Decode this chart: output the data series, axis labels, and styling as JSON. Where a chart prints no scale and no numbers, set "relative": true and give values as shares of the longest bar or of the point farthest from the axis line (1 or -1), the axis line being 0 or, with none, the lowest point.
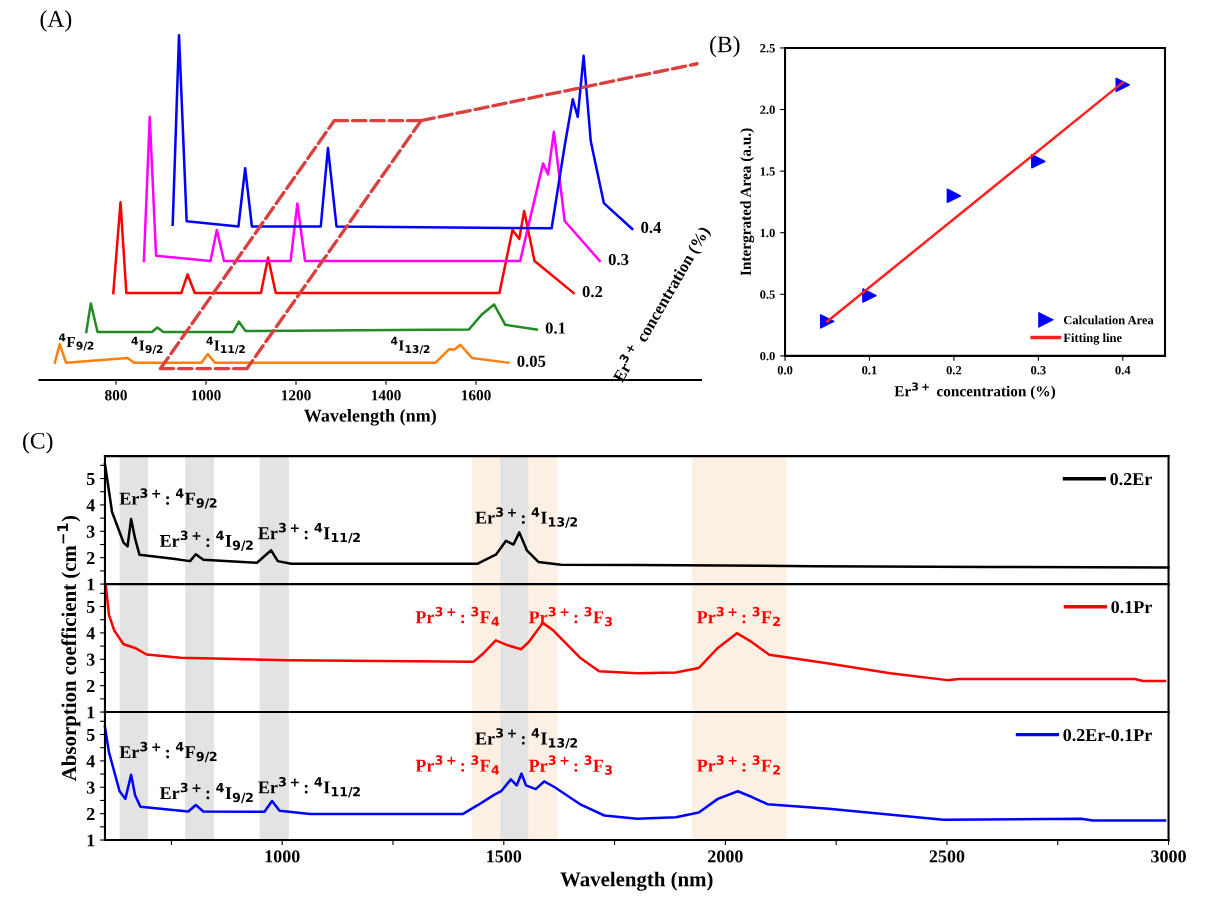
{
  "chart_data": [
    {
      "type": "line",
      "title": "(A)",
      "xlabel": "Wavelength (nm)",
      "y2label": "Er$^{3+}$ concentration (%)",
      "relative": true,
      "xlim": [
        630,
        2100
      ],
      "xticks": [
        800,
        1000,
        1200,
        1400,
        1600
      ],
      "tick_labels": "x",
      "series": [
        {
          "name": "0.05",
          "color": "#ff7f0e",
          "x": [
            664,
            675,
            689,
            826,
            840,
            990,
            1004,
            1020,
            1510,
            1540,
            1552,
            1565,
            1591,
            1672
          ],
          "values": [
            0.05,
            0.104,
            0.05,
            0.064,
            0.05,
            0.05,
            0.075,
            0.05,
            0.05,
            0.089,
            0.088,
            0.102,
            0.064,
            0.05
          ]
        },
        {
          "name": "0.1",
          "color": "#228b22",
          "x": [
            734,
            744,
            759,
            880,
            892,
            905,
            1060,
            1073,
            1088,
            1584,
            1613,
            1640,
            1665,
            1735
          ],
          "values": [
            0.139,
            0.222,
            0.139,
            0.139,
            0.152,
            0.139,
            0.139,
            0.169,
            0.142,
            0.146,
            0.19,
            0.219,
            0.16,
            0.146
          ]
        },
        {
          "name": "0.2",
          "color": "#ff0000",
          "x": [
            794,
            810,
            823,
            945,
            959,
            975,
            1122,
            1138,
            1155,
            1652,
            1681,
            1696,
            1707,
            1730,
            1817
          ],
          "values": [
            0.252,
            0.515,
            0.252,
            0.252,
            0.306,
            0.252,
            0.252,
            0.355,
            0.252,
            0.252,
            0.435,
            0.409,
            0.49,
            0.345,
            0.252
          ]
        },
        {
          "name": "0.3",
          "color": "#ff00ff",
          "x": [
            862,
            875,
            889,
            1010,
            1024,
            1040,
            1188,
            1203,
            1220,
            1698,
            1749,
            1760,
            1773,
            1797,
            1875
          ],
          "values": [
            0.345,
            0.763,
            0.36,
            0.345,
            0.435,
            0.345,
            0.345,
            0.512,
            0.345,
            0.345,
            0.628,
            0.596,
            0.72,
            0.461,
            0.345
          ]
        },
        {
          "name": "0.4",
          "color": "#0000ff",
          "x": [
            926,
            940,
            957,
            1072,
            1087,
            1102,
            1255,
            1271,
            1290,
            1768,
            1797,
            1815,
            1826,
            1839,
            1855,
            1884,
            1947
          ],
          "values": [
            0.45,
            1.0,
            0.46,
            0.445,
            0.614,
            0.445,
            0.445,
            0.673,
            0.445,
            0.44,
            0.679,
            0.814,
            0.763,
            0.94,
            0.692,
            0.513,
            0.438
          ]
        },
        {
          "type": "line",
          "line_style": "dashed",
          "color": "#d9413f",
          "x": [
            899,
            1285,
            1478,
            1091,
            899
          ],
          "values": [
            0.033,
            0.752,
            0.752,
            0.033,
            0.033
          ]
        },
        {
          "type": "line",
          "line_style": "dashed",
          "color": "#d9413f",
          "x": [
            1478,
            2091
          ],
          "values": [
            0.752,
            0.917
          ]
        }
      ],
      "annotations": [
        "$^{4}$F$_{9/2}$",
        "$^{4}$I$_{9/2}$",
        "$^{4}$I$_{11/2}$",
        "$^{4}$I$_{13/2}$"
      ]
    },
    {
      "type": "scatter",
      "title": "(B)",
      "xlabel": "Er$^{3+}$ concentration (%)",
      "ylabel": "Intergrated Area (a.u.)",
      "xlim": [
        0,
        0.45
      ],
      "ylim": [
        0,
        2.5
      ],
      "xticks": [
        {
          "value": 0,
          "label": "0.0"
        },
        0.1,
        0.2,
        0.3,
        0.4
      ],
      "yticks": [
        {
          "value": 0,
          "label": "0.0"
        },
        0.5,
        {
          "value": 1,
          "label": "1.0"
        },
        1.5,
        {
          "value": 2,
          "label": "2.0"
        },
        2.5
      ],
      "legend": "bottom right",
      "series": [
        {
          "name": "Calculation Area",
          "type": "scatter",
          "marker": "triangle",
          "color": "#0000ff",
          "x": [
            0.05,
            0.1,
            0.2,
            0.3,
            0.4
          ],
          "values": [
            0.28,
            0.49,
            1.3,
            1.58,
            2.2
          ]
        },
        {
          "name": "Fitting line",
          "type": "line",
          "color": "#ff2020",
          "x": [
            0.05,
            0.4
          ],
          "values": [
            0.28,
            2.22
          ]
        }
      ]
    },
    {
      "type": "line",
      "title": "(C)",
      "xlim": [
        600,
        3000
      ],
      "ylim": [
        1,
        5.85
      ],
      "yticks": [
        1,
        {
          "value": 1.5,
          "label": null
        },
        2,
        {
          "value": 2.5,
          "label": null
        },
        3,
        {
          "value": 3.5,
          "label": null
        },
        4,
        {
          "value": 4.5,
          "label": null
        },
        5,
        {
          "value": 5.5,
          "label": null
        }
      ],
      "tick_labels": "y",
      "legend": "top right",
      "bands": [
        {
          "axis": "x",
          "from": 633,
          "to": 697,
          "color": "#e3e3e3"
        },
        {
          "axis": "x",
          "from": 781,
          "to": 846,
          "color": "#e3e3e3"
        },
        {
          "axis": "x",
          "from": 949,
          "to": 1015,
          "color": "#e3e3e3"
        },
        {
          "axis": "x",
          "from": 1428,
          "to": 1492,
          "color": "#fcefe3"
        },
        {
          "axis": "x",
          "from": 1492,
          "to": 1556,
          "color": "#e3e3e3"
        },
        {
          "axis": "x",
          "from": 1556,
          "to": 1621,
          "color": "#fcefe3"
        },
        {
          "axis": "x",
          "from": 1924,
          "to": 2138,
          "color": "#fcefe3"
        }
      ],
      "series": [
        {
          "name": "0.2Er",
          "color": "#000000",
          "x": [
            600,
            616,
            642,
            651,
            659,
            668,
            678,
            754,
            792,
            805,
            822,
            943,
            975,
            990,
            1020,
            1440,
            1483,
            1505,
            1522,
            1535,
            1552,
            1578,
            1629,
            1800,
            2200,
            2600,
            3000
          ],
          "values": [
            5.55,
            3.73,
            2.57,
            2.43,
            3.47,
            2.72,
            2.11,
            1.96,
            1.87,
            2.13,
            1.92,
            1.81,
            2.28,
            1.87,
            1.77,
            1.77,
            2.13,
            2.64,
            2.5,
            2.96,
            2.28,
            1.84,
            1.73,
            1.72,
            1.68,
            1.65,
            1.63
          ]
        }
      ],
      "annotations": [
        "Er$^{3+}$: $^{4}$F$_{9/2}$",
        "Er$^{3+}$: $^{4}$I$_{9/2}$",
        "Er$^{3+}$: $^{4}$I$_{11/2}$",
        {
          "text": "Er$^{3+}$: $^{4}$I$_{13/2}$",
          "x": 1552,
          "y": 3.52
        }
      ]
    },
    {
      "type": "line",
      "ylabel": "Absorption coefficient (cm$^{−1}$)",
      "xlim": [
        600,
        3000
      ],
      "ylim": [
        1,
        5.85
      ],
      "yticks": [
        1,
        {
          "value": 1.5,
          "label": null
        },
        2,
        {
          "value": 2.5,
          "label": null
        },
        3,
        {
          "value": 3.5,
          "label": null
        },
        4,
        {
          "value": 4.5,
          "label": null
        },
        5,
        {
          "value": 5.5,
          "label": null
        }
      ],
      "tick_labels": "y",
      "legend": "top right",
      "bands": [
        {
          "axis": "x",
          "from": 633,
          "to": 697,
          "color": "#e3e3e3"
        },
        {
          "axis": "x",
          "from": 781,
          "to": 846,
          "color": "#e3e3e3"
        },
        {
          "axis": "x",
          "from": 949,
          "to": 1015,
          "color": "#e3e3e3"
        },
        {
          "axis": "x",
          "from": 1428,
          "to": 1492,
          "color": "#fcefe3",
          "label": "Pr$^{3+}$: $^{3}$F$_{4}$"
        },
        {
          "axis": "x",
          "from": 1492,
          "to": 1556,
          "color": "#e3e3e3"
        },
        {
          "axis": "x",
          "from": 1556,
          "to": 1621,
          "color": "#fcefe3",
          "label": "Pr$^{3+}$: $^{3}$F$_{3}$"
        },
        {
          "axis": "x",
          "from": 1924,
          "to": 2138,
          "color": "#fcefe3",
          "label": "Pr$^{3+}$: $^{3}$F$_{2}$"
        }
      ],
      "series": [
        {
          "name": "0.1Pr",
          "color": "#ff0000",
          "x": [
            602,
            609,
            621,
            642,
            668,
            694,
            771,
            1011,
            1432,
            1453,
            1482,
            1509,
            1539,
            1556,
            1588,
            1612,
            1672,
            1715,
            1801,
            1888,
            1940,
            1983,
            2026,
            2060,
            2099,
            2233,
            2372,
            2501,
            2527,
            2924,
            2942,
            2992
          ],
          "values": [
            5.8,
            4.68,
            4.09,
            3.57,
            3.43,
            3.18,
            3.06,
            2.96,
            2.91,
            3.21,
            3.72,
            3.53,
            3.38,
            3.65,
            4.38,
            4.09,
            3.06,
            2.55,
            2.47,
            2.5,
            2.67,
            3.43,
            3.99,
            3.65,
            3.17,
            2.84,
            2.47,
            2.21,
            2.25,
            2.25,
            2.18,
            2.18
          ]
        }
      ]
    },
    {
      "type": "line",
      "xlabel": "Wavelength (nm)",
      "xlim": [
        600,
        3000
      ],
      "ylim": [
        1,
        5.85
      ],
      "xticks": [
        {
          "value": 750,
          "label": null
        },
        1000,
        {
          "value": 1250,
          "label": null
        },
        1500,
        {
          "value": 1750,
          "label": null
        },
        2000,
        {
          "value": 2250,
          "label": null
        },
        2500,
        {
          "value": 2750,
          "label": null
        },
        3000
      ],
      "yticks": [
        1,
        {
          "value": 1.5,
          "label": null
        },
        2,
        {
          "value": 2.5,
          "label": null
        },
        3,
        {
          "value": 3.5,
          "label": null
        },
        4,
        {
          "value": 4.5,
          "label": null
        },
        5,
        {
          "value": 5.5,
          "label": null
        }
      ],
      "legend": "top right",
      "bands": [
        {
          "axis": "x",
          "from": 633,
          "to": 697,
          "color": "#e3e3e3"
        },
        {
          "axis": "x",
          "from": 781,
          "to": 846,
          "color": "#e3e3e3"
        },
        {
          "axis": "x",
          "from": 949,
          "to": 1015,
          "color": "#e3e3e3"
        },
        {
          "axis": "x",
          "from": 1428,
          "to": 1492,
          "color": "#fcefe3",
          "label": "Pr$^{3+}$: $^{3}$F$_{4}$"
        },
        {
          "axis": "x",
          "from": 1492,
          "to": 1556,
          "color": "#e3e3e3"
        },
        {
          "axis": "x",
          "from": 1556,
          "to": 1621,
          "color": "#fcefe3",
          "label": "Pr$^{3+}$: $^{3}$F$_{3}$"
        },
        {
          "axis": "x",
          "from": 1924,
          "to": 2138,
          "color": "#fcefe3",
          "label": "Pr$^{3+}$: $^{3}$F$_{2}$"
        }
      ],
      "series": [
        {
          "name": "0.2Er-0.1Pr",
          "color": "#0000ff",
          "x": [
            600,
            609,
            633,
            646,
            659,
            668,
            680,
            788,
            805,
            822,
            960,
            977,
            994,
            1063,
            1408,
            1442,
            1477,
            1494,
            1516,
            1529,
            1540,
            1550,
            1572,
            1591,
            1615,
            1675,
            1727,
            1801,
            1888,
            1940,
            1983,
            2028,
            2060,
            2095,
            2233,
            2492,
            2803,
            2829,
            2992
          ],
          "values": [
            5.3,
            4.33,
            2.85,
            2.56,
            3.47,
            2.7,
            2.26,
            2.08,
            2.33,
            2.08,
            2.07,
            2.48,
            2.11,
            1.99,
            1.99,
            2.33,
            2.7,
            2.85,
            3.3,
            3.07,
            3.52,
            3.07,
            2.93,
            3.22,
            3.0,
            2.33,
            1.93,
            1.81,
            1.86,
            2.04,
            2.56,
            2.85,
            2.63,
            2.36,
            2.19,
            1.77,
            1.81,
            1.74,
            1.74
          ]
        }
      ],
      "annotations": [
        "Er$^{3+}$: $^{4}$F$_{9/2}$",
        "Er$^{3+}$: $^{4}$I$_{9/2}$",
        "Er$^{3+}$: $^{4}$I$_{11/2}$",
        {
          "text": "Er$^{3+}$: $^{4}$I$_{13/2}$",
          "x": 1552,
          "y": 4.85
        }
      ]
    }
  ]
}
